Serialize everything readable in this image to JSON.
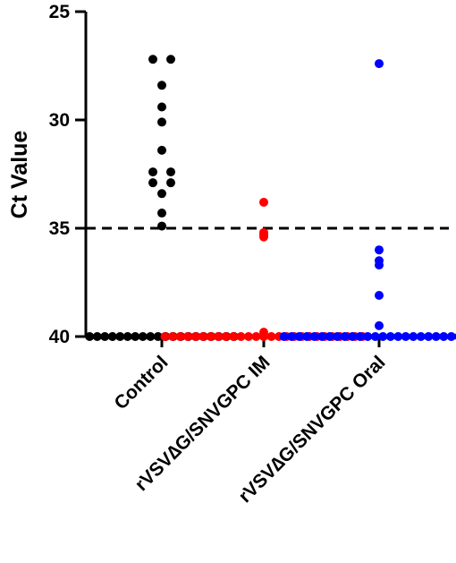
{
  "chart_data": {
    "type": "scatter",
    "title": "",
    "xlabel": "",
    "ylabel": "Ct Value",
    "y_axis_inverted": true,
    "ylim": [
      25,
      40
    ],
    "yticks": [
      25,
      30,
      35,
      40
    ],
    "ytick_labels": [
      "25",
      "30",
      "35",
      "40"
    ],
    "categories": [
      "Control",
      "rVSV∆G/SNVGPC IM",
      "rVSV∆G/SNVGPC Oral"
    ],
    "reference_line": {
      "y": 35,
      "style": "dashed",
      "color": "#000000"
    },
    "grid": false,
    "legend": "none",
    "series": [
      {
        "category": "Control",
        "color": "#000000",
        "values": [
          27.2,
          27.2,
          28.4,
          29.4,
          30.1,
          31.4,
          32.4,
          32.4,
          32.9,
          32.9,
          33.4,
          34.3,
          34.9,
          40,
          40,
          40,
          40,
          40,
          40,
          40,
          40,
          40,
          40,
          40,
          40,
          40,
          40,
          40,
          40,
          40,
          40,
          40,
          40
        ]
      },
      {
        "category": "rVSV∆G/SNVGPC IM",
        "color": "#ff0000",
        "values": [
          33.8,
          35.2,
          35.3,
          35.4,
          39.8,
          40,
          40,
          40,
          40,
          40,
          40,
          40,
          40,
          40,
          40,
          40,
          40,
          40,
          40,
          40,
          40,
          40,
          40,
          40,
          40,
          40,
          40,
          40,
          40,
          40,
          40,
          40
        ]
      },
      {
        "category": "rVSV∆G/SNVGPC Oral",
        "color": "#0000ff",
        "values": [
          27.4,
          36.0,
          36.5,
          36.7,
          38.1,
          39.5,
          40,
          40,
          40,
          40,
          40,
          40,
          40,
          40,
          40,
          40,
          40,
          40,
          40,
          40,
          40,
          40,
          40,
          40,
          40,
          40,
          40,
          40,
          40,
          40,
          40,
          40
        ]
      }
    ]
  }
}
